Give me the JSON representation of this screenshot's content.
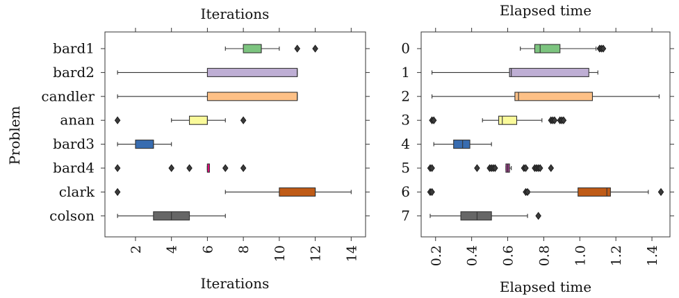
{
  "chart_data": [
    {
      "type": "boxplot",
      "title": "Iterations",
      "xlabel": "Iterations",
      "ylabel": "Problem",
      "xlim": [
        0.3,
        14.8
      ],
      "xticks": [
        2,
        4,
        6,
        8,
        10,
        12,
        14
      ],
      "xtick_labels": [
        "2",
        "4",
        "6",
        "8",
        "10",
        "12",
        "14"
      ],
      "categories": [
        "bard1",
        "bard2",
        "candler",
        "anan",
        "bard3",
        "bard4",
        "clark",
        "colson"
      ],
      "series": [
        {
          "category": "bard1",
          "color": "#7cc47f",
          "whisker_low": 7,
          "q1": 8,
          "median": 9,
          "q3": 9,
          "whisker_high": 10,
          "outliers": [
            11,
            12
          ]
        },
        {
          "category": "bard2",
          "color": "#beaed4",
          "whisker_low": 1,
          "q1": 6,
          "median": 11,
          "q3": 11,
          "whisker_high": 11,
          "outliers": []
        },
        {
          "category": "candler",
          "color": "#fdc086",
          "whisker_low": 1,
          "q1": 6,
          "median": 11,
          "q3": 11,
          "whisker_high": 11,
          "outliers": []
        },
        {
          "category": "anan",
          "color": "#fafa9a",
          "whisker_low": 4,
          "q1": 5,
          "median": 6,
          "q3": 6,
          "whisker_high": 7,
          "outliers": [
            1,
            8
          ]
        },
        {
          "category": "bard3",
          "color": "#386cb0",
          "whisker_low": 1,
          "q1": 2,
          "median": 3,
          "q3": 3,
          "whisker_high": 4,
          "outliers": []
        },
        {
          "category": "bard4",
          "color": "#f0027f",
          "whisker_low": 6,
          "q1": 6,
          "median": 6,
          "q3": 6,
          "whisker_high": 6,
          "outliers": [
            1,
            4,
            5,
            7,
            8
          ]
        },
        {
          "category": "clark",
          "color": "#bf5b17",
          "whisker_low": 7,
          "q1": 10,
          "median": 12,
          "q3": 12,
          "whisker_high": 14,
          "outliers": [
            1
          ]
        },
        {
          "category": "colson",
          "color": "#666666",
          "whisker_low": 1,
          "q1": 3,
          "median": 4,
          "q3": 5,
          "whisker_high": 7,
          "outliers": []
        }
      ]
    },
    {
      "type": "boxplot",
      "title": "Elapsed time",
      "xlabel": "Elapsed time",
      "xlim": [
        0.12,
        1.5
      ],
      "xticks": [
        0.2,
        0.4,
        0.6,
        0.8,
        1.0,
        1.2,
        1.4
      ],
      "xtick_labels": [
        "0.2",
        "0.4",
        "0.6",
        "0.8",
        "1.0",
        "1.2",
        "1.4"
      ],
      "categories": [
        "0",
        "1",
        "2",
        "3",
        "4",
        "5",
        "6",
        "7"
      ],
      "series": [
        {
          "category": "0",
          "color": "#7cc47f",
          "whisker_low": 0.67,
          "q1": 0.75,
          "median": 0.78,
          "q3": 0.89,
          "whisker_high": 1.09,
          "outliers": [
            1.11,
            1.12,
            1.13
          ]
        },
        {
          "category": "1",
          "color": "#beaed4",
          "whisker_low": 0.18,
          "q1": 0.61,
          "median": 0.62,
          "q3": 1.05,
          "whisker_high": 1.1,
          "outliers": []
        },
        {
          "category": "2",
          "color": "#fdc086",
          "whisker_low": 0.18,
          "q1": 0.64,
          "median": 0.66,
          "q3": 1.07,
          "whisker_high": 1.44,
          "outliers": []
        },
        {
          "category": "3",
          "color": "#fafa9a",
          "whisker_low": 0.46,
          "q1": 0.55,
          "median": 0.57,
          "q3": 0.65,
          "whisker_high": 0.79,
          "outliers": [
            0.18,
            0.19,
            0.84,
            0.85,
            0.86,
            0.89,
            0.9,
            0.91
          ]
        },
        {
          "category": "4",
          "color": "#386cb0",
          "whisker_low": 0.19,
          "q1": 0.3,
          "median": 0.35,
          "q3": 0.39,
          "whisker_high": 0.51,
          "outliers": []
        },
        {
          "category": "5",
          "color": "#9e3d8a",
          "whisker_low": 0.59,
          "q1": 0.59,
          "median": 0.6,
          "q3": 0.61,
          "whisker_high": 0.62,
          "outliers": [
            0.17,
            0.18,
            0.43,
            0.5,
            0.51,
            0.52,
            0.53,
            0.69,
            0.7,
            0.75,
            0.76,
            0.77,
            0.78,
            0.84
          ]
        },
        {
          "category": "6",
          "color": "#bf5b17",
          "whisker_low": 0.72,
          "q1": 0.99,
          "median": 1.15,
          "q3": 1.17,
          "whisker_high": 1.38,
          "outliers": [
            0.17,
            0.18,
            0.7,
            0.71,
            1.45
          ]
        },
        {
          "category": "7",
          "color": "#666666",
          "whisker_low": 0.17,
          "q1": 0.34,
          "median": 0.43,
          "q3": 0.51,
          "whisker_high": 0.71,
          "outliers": [
            0.77
          ]
        }
      ]
    }
  ]
}
